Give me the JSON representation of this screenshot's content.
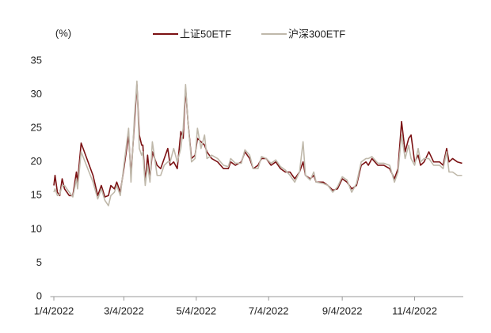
{
  "chart_data": {
    "type": "line",
    "y_label": "(%)",
    "x": [
      "2022-01-04",
      "2022-01-05",
      "2022-01-07",
      "2022-01-09",
      "2022-01-11",
      "2022-01-13",
      "2022-01-17",
      "2022-01-20",
      "2022-01-23",
      "2022-01-24",
      "2022-01-27",
      "2022-02-06",
      "2022-02-10",
      "2022-02-13",
      "2022-02-16",
      "2022-02-19",
      "2022-02-21",
      "2022-02-24",
      "2022-02-26",
      "2022-03-01",
      "2022-03-04",
      "2022-03-08",
      "2022-03-10",
      "2022-03-13",
      "2022-03-15",
      "2022-03-17",
      "2022-03-19",
      "2022-03-20",
      "2022-03-22",
      "2022-03-24",
      "2022-03-26",
      "2022-03-28",
      "2022-04-01",
      "2022-04-04",
      "2022-04-07",
      "2022-04-10",
      "2022-04-12",
      "2022-04-15",
      "2022-04-18",
      "2022-04-21",
      "2022-04-23",
      "2022-04-25",
      "2022-04-27",
      "2022-04-30",
      "2022-05-03",
      "2022-05-05",
      "2022-05-08",
      "2022-05-11",
      "2022-05-13",
      "2022-05-17",
      "2022-05-22",
      "2022-05-27",
      "2022-05-31",
      "2022-06-02",
      "2022-06-06",
      "2022-06-11",
      "2022-06-14",
      "2022-06-18",
      "2022-06-21",
      "2022-06-25",
      "2022-06-28",
      "2022-07-02",
      "2022-07-06",
      "2022-07-10",
      "2022-07-14",
      "2022-07-18",
      "2022-07-22",
      "2022-07-26",
      "2022-07-30",
      "2022-08-02",
      "2022-08-04",
      "2022-08-08",
      "2022-08-11",
      "2022-08-13",
      "2022-08-19",
      "2022-08-23",
      "2022-08-27",
      "2022-08-31",
      "2022-09-04",
      "2022-09-08",
      "2022-09-12",
      "2022-09-16",
      "2022-09-20",
      "2022-09-24",
      "2022-09-26",
      "2022-09-29",
      "2022-10-04",
      "2022-10-09",
      "2022-10-14",
      "2022-10-18",
      "2022-10-21",
      "2022-10-24",
      "2022-10-27",
      "2022-10-30",
      "2022-11-01",
      "2022-11-04",
      "2022-11-07",
      "2022-11-09",
      "2022-11-12",
      "2022-11-16",
      "2022-11-20",
      "2022-11-25",
      "2022-11-28",
      "2022-12-01",
      "2022-12-03",
      "2022-12-06",
      "2022-12-10",
      "2022-12-14"
    ],
    "series": [
      {
        "name": "上证50ETF",
        "color": "#7b1113",
        "values": [
          16.5,
          18,
          15.5,
          15,
          17.5,
          16,
          15,
          15,
          18.5,
          17,
          22.8,
          18,
          15,
          16.5,
          14.8,
          15,
          16.5,
          16,
          17,
          15.5,
          19,
          24,
          18,
          26,
          31.5,
          24,
          22.5,
          22.5,
          17,
          21,
          17.5,
          21.5,
          19.5,
          19,
          20.5,
          22,
          19.5,
          20,
          19,
          24.5,
          23.5,
          31,
          26,
          20.5,
          21,
          23.5,
          23,
          22.5,
          21.5,
          20.5,
          20,
          19,
          19,
          20,
          19.5,
          20,
          21.5,
          20.5,
          19,
          19.5,
          20.5,
          20.5,
          19.5,
          20,
          19,
          18.5,
          18.5,
          17.5,
          18.5,
          20,
          18,
          17.5,
          18,
          17,
          17,
          16.5,
          15.8,
          16,
          17.5,
          17,
          16,
          16.5,
          19.5,
          20,
          19.5,
          20.5,
          19.5,
          19.5,
          19,
          17.5,
          19,
          26,
          21.5,
          23.5,
          24,
          20,
          21,
          19.5,
          20,
          21.5,
          20,
          20,
          19.5,
          22,
          20,
          20.5,
          20,
          19.8
        ]
      },
      {
        "name": "沪深300ETF",
        "color": "#bfb8aa",
        "values": [
          15.5,
          16,
          15,
          15.2,
          16.5,
          16.5,
          15.5,
          14.8,
          17.5,
          16,
          21.5,
          17,
          14.5,
          16,
          14.3,
          13.5,
          15,
          15.5,
          16.5,
          15,
          19.5,
          25,
          17,
          27,
          32,
          22,
          21,
          21.5,
          16.5,
          19.5,
          17,
          23,
          18,
          18,
          19.5,
          20,
          20,
          22,
          20,
          22,
          25,
          31.5,
          26,
          20,
          20.5,
          25,
          22,
          24,
          20.5,
          21,
          20.5,
          19.5,
          19.3,
          20.5,
          19.8,
          19.8,
          21.8,
          21,
          19,
          19,
          20.8,
          20.5,
          19.8,
          20.3,
          19.3,
          18.8,
          18,
          17,
          18.5,
          23,
          18,
          17.3,
          18.5,
          17,
          16.8,
          16.5,
          15.5,
          16.3,
          17.8,
          17.3,
          15.5,
          16.8,
          20,
          20.5,
          20.5,
          20.8,
          19.8,
          19.8,
          19.5,
          17,
          18.5,
          24,
          20.5,
          22.5,
          20.5,
          19.5,
          22,
          20,
          20.5,
          20.5,
          19.5,
          19.5,
          19,
          21.5,
          18.5,
          18.5,
          18,
          18
        ]
      }
    ],
    "xlim": [
      "2022-01-01",
      "2022-12-15"
    ],
    "xticks": [
      {
        "value": "2022-01-04",
        "label": "1/4/2022"
      },
      {
        "value": "2022-03-04",
        "label": "3/4/2022"
      },
      {
        "value": "2022-05-04",
        "label": "5/4/2022"
      },
      {
        "value": "2022-07-04",
        "label": "7/4/2022"
      },
      {
        "value": "2022-09-04",
        "label": "9/4/2022"
      },
      {
        "value": "2022-11-04",
        "label": "11/4/2022"
      }
    ],
    "ylim": [
      0,
      35
    ],
    "yticks": [
      0,
      5,
      10,
      15,
      20,
      25,
      30,
      35
    ],
    "grid": false,
    "legend": "top"
  }
}
